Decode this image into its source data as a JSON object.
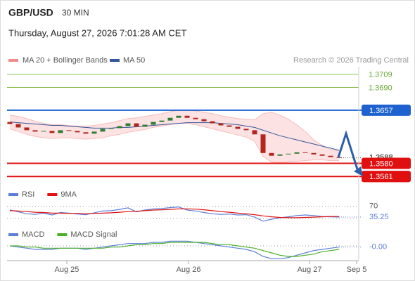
{
  "header": {
    "symbol": "GBP/USD",
    "interval": "30 MIN",
    "datetime": "Thursday, August 27, 2026 7:01:28 AM CET",
    "credit": "Research © 2026 Trading Central"
  },
  "chart_data": [
    {
      "type": "candlestick",
      "open": [
        1.364,
        1.3637,
        1.3632,
        1.3628,
        1.3626,
        1.3627,
        1.3624,
        1.3628,
        1.3627,
        1.3625,
        1.3623,
        1.3626,
        1.363,
        1.3631,
        1.3634,
        1.3638,
        1.3633,
        1.3636,
        1.364,
        1.3642,
        1.3646,
        1.3649,
        1.3646,
        1.3644,
        1.3641,
        1.3638,
        1.3635,
        1.3633,
        1.363,
        1.3628,
        1.3622,
        1.3595,
        1.3591,
        1.3593,
        1.3594,
        1.3596,
        1.3595,
        1.3593,
        1.3591,
        1.3589
      ],
      "close": [
        1.3637,
        1.3632,
        1.3628,
        1.3626,
        1.3627,
        1.3624,
        1.3628,
        1.3627,
        1.3625,
        1.3623,
        1.3626,
        1.363,
        1.3631,
        1.3634,
        1.3638,
        1.3633,
        1.3636,
        1.364,
        1.3642,
        1.3646,
        1.3649,
        1.3646,
        1.3644,
        1.3641,
        1.3638,
        1.3635,
        1.3633,
        1.363,
        1.3628,
        1.3622,
        1.3595,
        1.3591,
        1.3593,
        1.3594,
        1.3596,
        1.3595,
        1.3593,
        1.3591,
        1.3589,
        1.3588
      ],
      "up_color": "#2f7d32",
      "down_color": "#b3261e",
      "bands": {
        "name": "MA 20 + Bollinger Bands",
        "color": "#f28b8b",
        "upper": [
          1.365,
          1.3648,
          1.3645,
          1.3641,
          1.3638,
          1.3636,
          1.3636,
          1.3635,
          1.3634,
          1.3634,
          1.3635,
          1.3637,
          1.3639,
          1.3642,
          1.3645,
          1.3646,
          1.3648,
          1.365,
          1.3652,
          1.3655,
          1.3657,
          1.3657,
          1.3656,
          1.3654,
          1.3652,
          1.3649,
          1.3647,
          1.3645,
          1.3644,
          1.3643,
          1.3652,
          1.3654,
          1.365,
          1.3644,
          1.3636,
          1.3626,
          1.3614,
          1.3606,
          1.36,
          1.3598
        ],
        "lower": [
          1.363,
          1.3626,
          1.3622,
          1.3619,
          1.3617,
          1.3616,
          1.3617,
          1.3617,
          1.3616,
          1.3615,
          1.3616,
          1.3617,
          1.362,
          1.3622,
          1.3625,
          1.3627,
          1.3629,
          1.3632,
          1.3634,
          1.3636,
          1.3638,
          1.3638,
          1.3636,
          1.3633,
          1.363,
          1.3627,
          1.3624,
          1.3621,
          1.3618,
          1.3612,
          1.359,
          1.3582,
          1.3581,
          1.3582,
          1.3583,
          1.3584,
          1.3585,
          1.3585,
          1.3584,
          1.3584
        ]
      },
      "ma50": {
        "name": "MA 50",
        "color": "#34569a",
        "values": [
          1.364,
          1.3639,
          1.3638,
          1.3637,
          1.3636,
          1.3635,
          1.3635,
          1.3634,
          1.3633,
          1.3632,
          1.3631,
          1.3631,
          1.3631,
          1.3632,
          1.3632,
          1.3633,
          1.3634,
          1.3635,
          1.3636,
          1.3637,
          1.3638,
          1.3639,
          1.3639,
          1.3639,
          1.3639,
          1.3638,
          1.3637,
          1.3636,
          1.3634,
          1.3632,
          1.3628,
          1.3624,
          1.362,
          1.3617,
          1.3614,
          1.3611,
          1.3608,
          1.3605,
          1.3602,
          1.3599
        ]
      },
      "levels": [
        {
          "value": 1.3709,
          "color": "#8cc152",
          "badge": false
        },
        {
          "value": 1.369,
          "label": "1.3690",
          "color": "#8cc152",
          "badge": false
        },
        {
          "value": 1.3657,
          "color": "#1e62d0",
          "badge": true
        },
        {
          "value": 1.358,
          "label": "1.3580",
          "color": "#e01010",
          "badge": true
        },
        {
          "value": 1.3561,
          "color": "#e01010",
          "badge": true
        }
      ],
      "last_price": 1.3588,
      "ylim": [
        1.355,
        1.372
      ]
    },
    {
      "type": "line",
      "series": [
        {
          "name": "RSI",
          "color": "#5b7fd6",
          "values": [
            58,
            52,
            46,
            44,
            48,
            42,
            50,
            48,
            45,
            43,
            49,
            55,
            56,
            60,
            65,
            52,
            58,
            62,
            63,
            66,
            68,
            58,
            55,
            50,
            46,
            44,
            45,
            42,
            43,
            35,
            22,
            28,
            33,
            36,
            40,
            42,
            40,
            37,
            36,
            35.25
          ]
        },
        {
          "name": "9MA",
          "color": "#e01010",
          "values": [
            56,
            55,
            53,
            51,
            50,
            48,
            48,
            47,
            47,
            46,
            47,
            48,
            49,
            51,
            53,
            54,
            56,
            58,
            59,
            60,
            62,
            62,
            61,
            59,
            56,
            53,
            51,
            48,
            46,
            43,
            39,
            36,
            34,
            33,
            33,
            34,
            35,
            36,
            37,
            37
          ]
        }
      ],
      "ylim": [
        10,
        90
      ],
      "yticks": [
        70,
        30
      ]
    },
    {
      "type": "line",
      "series": [
        {
          "name": "MACD",
          "color": "#5b7fd6",
          "values": [
            0.0,
            -0.0001,
            -0.0002,
            -0.0003,
            -0.0003,
            -0.0003,
            -0.0002,
            -0.0002,
            -0.0002,
            -0.0003,
            -0.0002,
            -0.0001,
            0.0,
            0.0001,
            0.0002,
            0.0002,
            0.0002,
            0.0003,
            0.0003,
            0.0004,
            0.0004,
            0.0004,
            0.0003,
            0.0002,
            0.0001,
            0.0,
            -0.0001,
            -0.0002,
            -0.0003,
            -0.0005,
            -0.0009,
            -0.0011,
            -0.0011,
            -0.001,
            -0.0008,
            -0.0006,
            -0.0004,
            -0.0003,
            -0.0002,
            -0.0001
          ],
          "last_label": "-0.00"
        },
        {
          "name": "MACD Signal",
          "color": "#4caf28",
          "values": [
            0.0,
            0.0,
            -0.0001,
            -0.0001,
            -0.0002,
            -0.0002,
            -0.0002,
            -0.0002,
            -0.0002,
            -0.0002,
            -0.0002,
            -0.0002,
            -0.0001,
            -0.0001,
            0.0,
            0.0001,
            0.0001,
            0.0002,
            0.0002,
            0.0003,
            0.0003,
            0.0003,
            0.0003,
            0.0003,
            0.0002,
            0.0001,
            0.0001,
            0.0,
            -0.0001,
            -0.0002,
            -0.0004,
            -0.0006,
            -0.0008,
            -0.0009,
            -0.0009,
            -0.0008,
            -0.0007,
            -0.0005,
            -0.0004,
            -0.0003
          ]
        }
      ],
      "ylim": [
        -0.0012,
        0.0006
      ],
      "yticks": [
        0
      ],
      "xlim": [
        -0.33,
        41.33
      ],
      "xticks": [
        {
          "value": 6.75,
          "label": "Aug 25"
        },
        {
          "value": 21.17,
          "label": "Aug 26"
        },
        {
          "value": 35.5,
          "label": "Aug 27"
        },
        {
          "value": 41.08,
          "label": "Sep 5"
        }
      ]
    }
  ]
}
